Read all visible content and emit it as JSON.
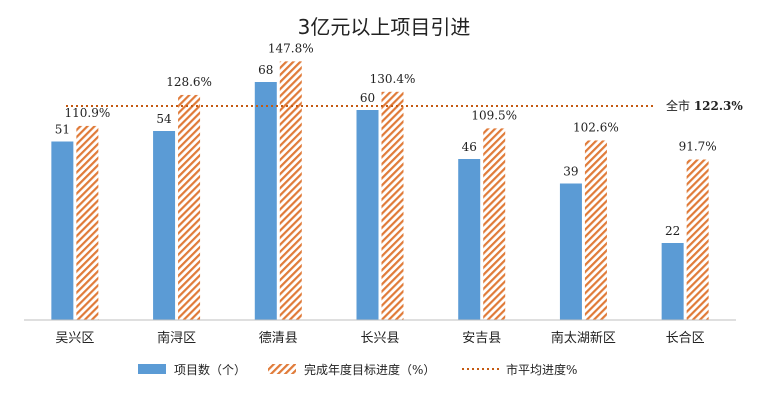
{
  "chart_data": {
    "type": "bar",
    "title": "3亿元以上项目引进",
    "categories": [
      "吴兴区",
      "南浔区",
      "德清县",
      "长兴县",
      "安吉县",
      "南太湖新区",
      "长合区"
    ],
    "series": [
      {
        "name": "项目数（个）",
        "type": "bar",
        "axis": "left",
        "color": "#5b9bd5",
        "pattern": "solid",
        "values": [
          51,
          54,
          68,
          60,
          46,
          39,
          22
        ],
        "labels": [
          "51",
          "54",
          "68",
          "60",
          "46",
          "39",
          "22"
        ]
      },
      {
        "name": "完成年度目标进度（%）",
        "type": "bar",
        "axis": "right",
        "color": "#ed7d31",
        "pattern": "diagonal-hatch",
        "values": [
          110.9,
          128.6,
          147.8,
          130.4,
          109.5,
          102.6,
          91.7
        ],
        "labels": [
          "110.9%",
          "128.6%",
          "147.8%",
          "130.4%",
          "109.5%",
          "102.6%",
          "91.7%"
        ]
      }
    ],
    "reference_line": {
      "name": "市平均进度%",
      "value": 122.3,
      "axis": "right",
      "style": "dotted",
      "color": "#c55a11",
      "label_prefix": "全市",
      "label_value": "122.3%"
    },
    "ylim_left": [
      0,
      80
    ],
    "ylim_right": [
      0,
      160
    ],
    "grid": false,
    "legend_position": "bottom"
  }
}
